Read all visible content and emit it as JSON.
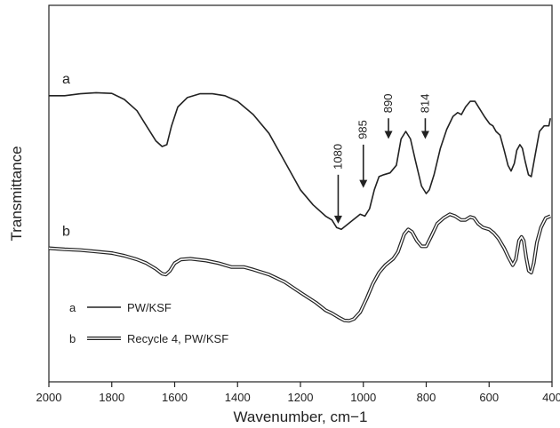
{
  "chart_data": {
    "type": "line",
    "title": "",
    "xlabel": "Wavenumber, cm−1",
    "ylabel": "Transmittance",
    "xlim": [
      2000,
      400
    ],
    "x_reversed": true,
    "x_ticks": [
      2000,
      1800,
      1600,
      1400,
      1200,
      1000,
      800,
      600,
      400
    ],
    "y_ticks_shown": false,
    "grid": false,
    "legend_position": "bottom-left",
    "series": [
      {
        "name": "PW/KSF",
        "letter": "a",
        "style": "single",
        "color": "#222222",
        "points": [
          [
            2000,
            0.76
          ],
          [
            1950,
            0.76
          ],
          [
            1900,
            0.765
          ],
          [
            1850,
            0.768
          ],
          [
            1800,
            0.766
          ],
          [
            1760,
            0.75
          ],
          [
            1720,
            0.72
          ],
          [
            1690,
            0.68
          ],
          [
            1660,
            0.64
          ],
          [
            1640,
            0.625
          ],
          [
            1625,
            0.63
          ],
          [
            1610,
            0.68
          ],
          [
            1590,
            0.73
          ],
          [
            1560,
            0.755
          ],
          [
            1520,
            0.765
          ],
          [
            1480,
            0.765
          ],
          [
            1440,
            0.76
          ],
          [
            1400,
            0.745
          ],
          [
            1350,
            0.71
          ],
          [
            1300,
            0.66
          ],
          [
            1260,
            0.6
          ],
          [
            1220,
            0.54
          ],
          [
            1200,
            0.51
          ],
          [
            1160,
            0.47
          ],
          [
            1120,
            0.44
          ],
          [
            1100,
            0.43
          ],
          [
            1085,
            0.41
          ],
          [
            1070,
            0.405
          ],
          [
            1055,
            0.415
          ],
          [
            1040,
            0.425
          ],
          [
            1010,
            0.445
          ],
          [
            995,
            0.44
          ],
          [
            980,
            0.46
          ],
          [
            965,
            0.51
          ],
          [
            950,
            0.545
          ],
          [
            935,
            0.55
          ],
          [
            915,
            0.555
          ],
          [
            895,
            0.575
          ],
          [
            880,
            0.645
          ],
          [
            865,
            0.665
          ],
          [
            850,
            0.645
          ],
          [
            835,
            0.59
          ],
          [
            815,
            0.52
          ],
          [
            800,
            0.5
          ],
          [
            790,
            0.51
          ],
          [
            775,
            0.55
          ],
          [
            755,
            0.62
          ],
          [
            735,
            0.67
          ],
          [
            715,
            0.705
          ],
          [
            700,
            0.715
          ],
          [
            688,
            0.71
          ],
          [
            675,
            0.73
          ],
          [
            660,
            0.745
          ],
          [
            645,
            0.745
          ],
          [
            630,
            0.725
          ],
          [
            615,
            0.705
          ],
          [
            598,
            0.685
          ],
          [
            588,
            0.68
          ],
          [
            578,
            0.665
          ],
          [
            565,
            0.655
          ],
          [
            552,
            0.615
          ],
          [
            540,
            0.575
          ],
          [
            530,
            0.56
          ],
          [
            520,
            0.58
          ],
          [
            512,
            0.615
          ],
          [
            502,
            0.63
          ],
          [
            494,
            0.62
          ],
          [
            485,
            0.585
          ],
          [
            475,
            0.55
          ],
          [
            466,
            0.545
          ],
          [
            455,
            0.595
          ],
          [
            440,
            0.665
          ],
          [
            425,
            0.68
          ],
          [
            410,
            0.68
          ],
          [
            405,
            0.7
          ]
        ]
      },
      {
        "name": "Recycle 4, PW/KSF",
        "letter": "b",
        "style": "double",
        "color": "#222222",
        "points": [
          [
            2000,
            0.355
          ],
          [
            1950,
            0.352
          ],
          [
            1900,
            0.35
          ],
          [
            1850,
            0.346
          ],
          [
            1800,
            0.342
          ],
          [
            1760,
            0.335
          ],
          [
            1720,
            0.325
          ],
          [
            1690,
            0.315
          ],
          [
            1660,
            0.3
          ],
          [
            1640,
            0.287
          ],
          [
            1628,
            0.285
          ],
          [
            1615,
            0.295
          ],
          [
            1600,
            0.315
          ],
          [
            1580,
            0.325
          ],
          [
            1550,
            0.327
          ],
          [
            1500,
            0.322
          ],
          [
            1460,
            0.315
          ],
          [
            1420,
            0.305
          ],
          [
            1400,
            0.305
          ],
          [
            1380,
            0.305
          ],
          [
            1350,
            0.298
          ],
          [
            1300,
            0.285
          ],
          [
            1250,
            0.265
          ],
          [
            1200,
            0.237
          ],
          [
            1150,
            0.21
          ],
          [
            1120,
            0.19
          ],
          [
            1100,
            0.182
          ],
          [
            1080,
            0.172
          ],
          [
            1060,
            0.163
          ],
          [
            1045,
            0.162
          ],
          [
            1030,
            0.167
          ],
          [
            1010,
            0.185
          ],
          [
            990,
            0.22
          ],
          [
            970,
            0.26
          ],
          [
            950,
            0.29
          ],
          [
            930,
            0.31
          ],
          [
            905,
            0.327
          ],
          [
            890,
            0.345
          ],
          [
            870,
            0.392
          ],
          [
            857,
            0.405
          ],
          [
            845,
            0.398
          ],
          [
            830,
            0.375
          ],
          [
            815,
            0.36
          ],
          [
            800,
            0.36
          ],
          [
            785,
            0.385
          ],
          [
            765,
            0.42
          ],
          [
            745,
            0.435
          ],
          [
            725,
            0.445
          ],
          [
            708,
            0.44
          ],
          [
            690,
            0.43
          ],
          [
            675,
            0.43
          ],
          [
            660,
            0.438
          ],
          [
            648,
            0.435
          ],
          [
            635,
            0.42
          ],
          [
            620,
            0.41
          ],
          [
            600,
            0.405
          ],
          [
            585,
            0.395
          ],
          [
            570,
            0.38
          ],
          [
            552,
            0.355
          ],
          [
            538,
            0.33
          ],
          [
            525,
            0.31
          ],
          [
            515,
            0.325
          ],
          [
            505,
            0.375
          ],
          [
            497,
            0.385
          ],
          [
            490,
            0.375
          ],
          [
            482,
            0.33
          ],
          [
            474,
            0.295
          ],
          [
            466,
            0.29
          ],
          [
            458,
            0.315
          ],
          [
            448,
            0.37
          ],
          [
            435,
            0.41
          ],
          [
            420,
            0.435
          ],
          [
            405,
            0.44
          ]
        ]
      }
    ],
    "annotations": [
      {
        "label": "1080",
        "x": 1080,
        "arrow_top": 0.55,
        "arrow_tip": 0.42
      },
      {
        "label": "985",
        "x": 1000,
        "arrow_top": 0.63,
        "arrow_tip": 0.515
      },
      {
        "label": "890",
        "x": 920,
        "arrow_top": 0.7,
        "arrow_tip": 0.645
      },
      {
        "label": "814",
        "x": 803,
        "arrow_top": 0.7,
        "arrow_tip": 0.645
      }
    ],
    "legend": [
      {
        "letter": "a",
        "label": "PW/KSF",
        "style": "single"
      },
      {
        "letter": "b",
        "label": "Recycle 4, PW/KSF",
        "style": "double"
      }
    ]
  }
}
